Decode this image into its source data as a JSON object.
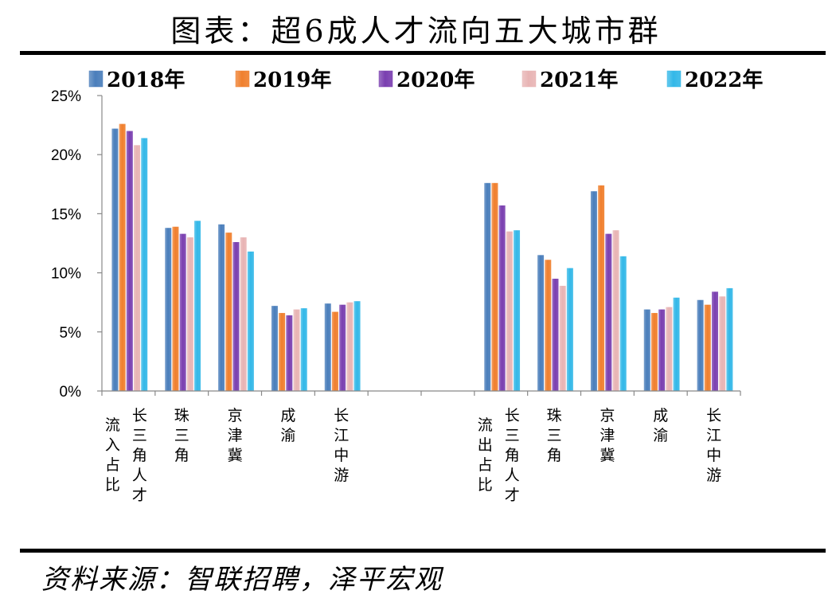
{
  "title": "图表：超6成人才流向五大城市群",
  "source": "资料来源：智联招聘，泽平宏观",
  "colors": {
    "2018年": "#4a7ebb",
    "2019年": "#f07f2d",
    "2020年": "#7a3fb0",
    "2021年": "#e8b4b4",
    "2022年": "#33b8e8"
  },
  "chart_data": {
    "type": "bar",
    "ylim": [
      0,
      25
    ],
    "yticks": [
      "0%",
      "5%",
      "10%",
      "15%",
      "20%",
      "25%"
    ],
    "ytick_values": [
      0,
      5,
      10,
      15,
      20,
      25
    ],
    "legend_position": "top",
    "groups": [
      {
        "label": "流入占比",
        "slot": 0,
        "label_stack": true
      },
      {
        "label": "流出占比",
        "slot": 7,
        "label_stack": true
      }
    ],
    "categories": [
      {
        "label": "长三角人才",
        "slot": 0
      },
      {
        "label": "珠三角",
        "slot": 1
      },
      {
        "label": "京津冀",
        "slot": 2
      },
      {
        "label": "成渝",
        "slot": 3
      },
      {
        "label": "长江中游",
        "slot": 4
      },
      {
        "label": "长三角人才",
        "slot": 7
      },
      {
        "label": "珠三角",
        "slot": 8
      },
      {
        "label": "京津冀",
        "slot": 9
      },
      {
        "label": "成渝",
        "slot": 10
      },
      {
        "label": "长江中游",
        "slot": 11
      }
    ],
    "series": [
      {
        "name": "2018年",
        "values": [
          22.2,
          13.8,
          14.1,
          7.2,
          7.4,
          17.6,
          11.5,
          16.9,
          6.9,
          7.7
        ]
      },
      {
        "name": "2019年",
        "values": [
          22.6,
          13.9,
          13.4,
          6.6,
          6.7,
          17.6,
          11.1,
          17.4,
          6.6,
          7.3
        ]
      },
      {
        "name": "2020年",
        "values": [
          22.0,
          13.3,
          12.6,
          6.4,
          7.3,
          15.7,
          9.5,
          13.3,
          6.9,
          8.4
        ]
      },
      {
        "name": "2021年",
        "values": [
          20.8,
          13.0,
          13.0,
          6.9,
          7.5,
          13.5,
          8.9,
          13.6,
          7.1,
          8.0
        ]
      },
      {
        "name": "2022年",
        "values": [
          21.4,
          14.4,
          11.8,
          7.0,
          7.6,
          13.6,
          10.4,
          11.4,
          7.9,
          8.7
        ]
      }
    ]
  }
}
